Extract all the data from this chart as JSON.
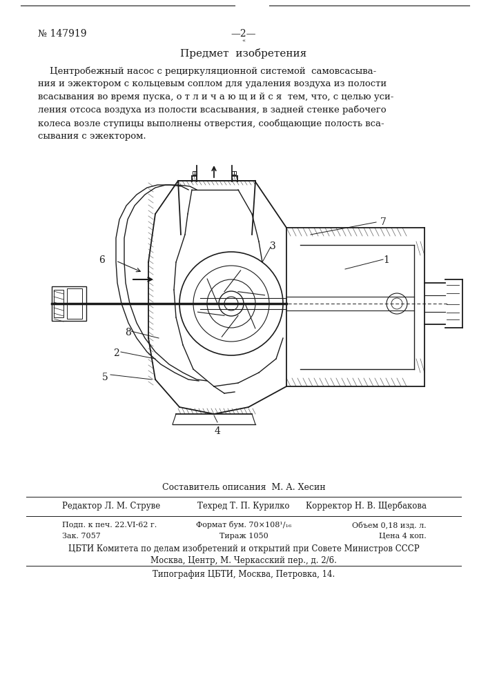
{
  "page_number": "№ 147919",
  "page_marker": "—2—",
  "page_marker_sub": "«",
  "section_title": "Предмет  изобретения",
  "body_line1": "    Центробежный насос с рециркуляционной системой  самовсасыва-",
  "body_line2": "ния и эжектором с кольцевым соплом для удаления воздуха из полости",
  "body_line3": "всасывания во время пуска, о т л и ч а ю щ и й с я  тем, что, с целью уси-",
  "body_line4": "ления отсоса воздуха из полости всасывания, в задней стенке рабочего",
  "body_line5": "колеса возле ступицы выполнены отверстия, сообщающие полость вса-",
  "body_line6": "сывания с эжектором.",
  "composer_line": "Составитель описания  М. А. Хесин",
  "editor_label": "Редактор Л. М. Струве",
  "tekhred_label": "Техред Т. П. Курилко",
  "korrektor_label": "Корректор Н. В. Щербакова",
  "row1_col1": "Подп. к печ. 22.VI-62 г.",
  "row1_col2": "Формат бум. 70×108¹/₁₆",
  "row1_col3": "Объем 0,18 изд. л.",
  "row2_col1": "Зак. 7057",
  "row2_col2": "Тираж 1050",
  "row2_col3": "Цена 4 коп.",
  "institute_line": "ЦБТИ Комитета по делам изобретений и открытий при Совете Министров СССР",
  "address_line": "Москва, Центр, М. Черкасский пер., д. 2/6.",
  "print_line": "Типография ЦБТИ, Москва, Петровка, 14.",
  "bg_color": "#ffffff",
  "text_color": "#1a1a1a",
  "draw_color": "#1a1a1a"
}
